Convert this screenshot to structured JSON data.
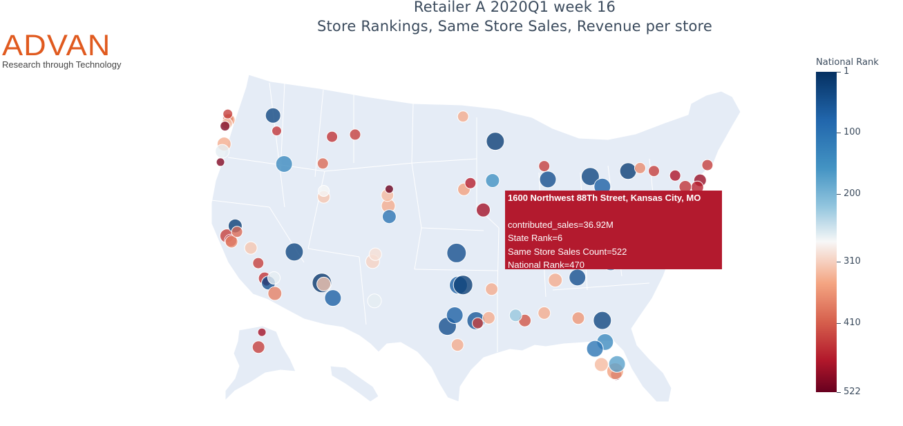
{
  "title": {
    "line1": "Retailer A 2020Q1 week 16",
    "line2": "Store Rankings, Same Store Sales, Revenue per store"
  },
  "logo": {
    "word": "ADVAN",
    "tagline": "Research through Technology"
  },
  "colorbar": {
    "title": "National Rank",
    "ticks": [
      "1",
      "100",
      "200",
      "310",
      "410",
      "522"
    ],
    "range": [
      1,
      522
    ],
    "reversed": true,
    "colorscale": [
      "#053061",
      "#2166ac",
      "#4393c3",
      "#92c5de",
      "#f7f7f7",
      "#f4a582",
      "#d6604d",
      "#b2182b",
      "#67001f"
    ]
  },
  "tooltip": {
    "address": "1600 Northwest 88Th Street, Kansas City, MO",
    "contributed_sales": "contributed_sales=36.92M",
    "state_rank": "State Rank=6",
    "same_store_sales_count": "Same Store Sales Count=522",
    "national_rank": "National Rank=470",
    "color": "#b31a2e"
  },
  "map": {
    "land_color": "#e5ecf6",
    "border_color": "#ffffff"
  },
  "chart_data": {
    "type": "scatter",
    "projection": "albers usa",
    "color_axis": "National Rank",
    "size_axis": "contributed_sales",
    "points": [
      {
        "lon": -122.3,
        "lat": 47.6,
        "rank": 480,
        "size": 8
      },
      {
        "lon": -122.2,
        "lat": 47.5,
        "rank": 330,
        "size": 9
      },
      {
        "lon": -122.4,
        "lat": 47.2,
        "rank": 300,
        "size": 8
      },
      {
        "lon": -122.6,
        "lat": 47.0,
        "rank": 500,
        "size": 7
      },
      {
        "lon": -122.3,
        "lat": 48.0,
        "rank": 420,
        "size": 7
      },
      {
        "lon": -117.4,
        "lat": 47.7,
        "rank": 30,
        "size": 11
      },
      {
        "lon": -117.0,
        "lat": 46.4,
        "rank": 430,
        "size": 7
      },
      {
        "lon": -116.2,
        "lat": 43.6,
        "rank": 120,
        "size": 12
      },
      {
        "lon": -112.0,
        "lat": 43.5,
        "rank": 380,
        "size": 8
      },
      {
        "lon": -111.9,
        "lat": 40.7,
        "rank": 300,
        "size": 9
      },
      {
        "lon": -111.9,
        "lat": 41.2,
        "rank": 260,
        "size": 8
      },
      {
        "lon": -122.7,
        "lat": 45.5,
        "rank": 320,
        "size": 10
      },
      {
        "lon": -122.9,
        "lat": 44.9,
        "rank": 250,
        "size": 10
      },
      {
        "lon": -123.1,
        "lat": 44.0,
        "rank": 500,
        "size": 6
      },
      {
        "lon": -122.4,
        "lat": 37.8,
        "rank": 420,
        "size": 10
      },
      {
        "lon": -122.0,
        "lat": 37.4,
        "rank": 460,
        "size": 9
      },
      {
        "lon": -121.9,
        "lat": 37.3,
        "rank": 350,
        "size": 9
      },
      {
        "lon": -121.5,
        "lat": 38.6,
        "rank": 20,
        "size": 10
      },
      {
        "lon": -121.3,
        "lat": 38.1,
        "rank": 380,
        "size": 8
      },
      {
        "lon": -119.8,
        "lat": 36.7,
        "rank": 300,
        "size": 9
      },
      {
        "lon": -119.0,
        "lat": 35.4,
        "rank": 420,
        "size": 8
      },
      {
        "lon": -118.3,
        "lat": 34.1,
        "rank": 430,
        "size": 9
      },
      {
        "lon": -118.1,
        "lat": 33.8,
        "rank": 500,
        "size": 6
      },
      {
        "lon": -117.9,
        "lat": 33.7,
        "rank": 40,
        "size": 10
      },
      {
        "lon": -117.2,
        "lat": 32.8,
        "rank": 360,
        "size": 10
      },
      {
        "lon": -117.3,
        "lat": 34.1,
        "rank": 250,
        "size": 9
      },
      {
        "lon": -115.1,
        "lat": 36.2,
        "rank": 30,
        "size": 13
      },
      {
        "lon": -112.1,
        "lat": 33.5,
        "rank": 10,
        "size": 14
      },
      {
        "lon": -111.9,
        "lat": 33.4,
        "rank": 300,
        "size": 10
      },
      {
        "lon": -110.9,
        "lat": 32.2,
        "rank": 60,
        "size": 12
      },
      {
        "lon": -106.6,
        "lat": 35.1,
        "rank": 290,
        "size": 10
      },
      {
        "lon": -104.9,
        "lat": 39.7,
        "rank": 320,
        "size": 10
      },
      {
        "lon": -104.8,
        "lat": 38.8,
        "rank": 90,
        "size": 10
      },
      {
        "lon": -105.0,
        "lat": 40.6,
        "rank": 310,
        "size": 9
      },
      {
        "lon": -106.3,
        "lat": 35.7,
        "rank": 280,
        "size": 9
      },
      {
        "lon": -104.8,
        "lat": 41.1,
        "rank": 520,
        "size": 6
      },
      {
        "lon": -108.5,
        "lat": 45.8,
        "rank": 420,
        "size": 8
      },
      {
        "lon": -111.0,
        "lat": 45.7,
        "rank": 430,
        "size": 8
      },
      {
        "lon": -106.4,
        "lat": 31.8,
        "rank": 250,
        "size": 10
      },
      {
        "lon": -97.5,
        "lat": 35.5,
        "rank": 40,
        "size": 14
      },
      {
        "lon": -97.3,
        "lat": 32.8,
        "rank": 60,
        "size": 13
      },
      {
        "lon": -96.8,
        "lat": 32.8,
        "rank": 20,
        "size": 14
      },
      {
        "lon": -98.5,
        "lat": 29.4,
        "rank": 40,
        "size": 13
      },
      {
        "lon": -97.7,
        "lat": 30.3,
        "rank": 60,
        "size": 12
      },
      {
        "lon": -95.4,
        "lat": 29.8,
        "rank": 50,
        "size": 13
      },
      {
        "lon": -95.2,
        "lat": 29.6,
        "rank": 420,
        "size": 8
      },
      {
        "lon": -94.0,
        "lat": 30.1,
        "rank": 320,
        "size": 9
      },
      {
        "lon": -93.7,
        "lat": 32.5,
        "rank": 320,
        "size": 9
      },
      {
        "lon": -97.4,
        "lat": 27.8,
        "rank": 320,
        "size": 9
      },
      {
        "lon": -96.7,
        "lat": 40.8,
        "rank": 330,
        "size": 9
      },
      {
        "lon": -96.0,
        "lat": 41.3,
        "rank": 450,
        "size": 8
      },
      {
        "lon": -94.6,
        "lat": 39.1,
        "rank": 470,
        "size": 10
      },
      {
        "lon": -93.6,
        "lat": 41.6,
        "rank": 130,
        "size": 10
      },
      {
        "lon": -93.3,
        "lat": 44.9,
        "rank": 20,
        "size": 13
      },
      {
        "lon": -96.8,
        "lat": 46.9,
        "rank": 320,
        "size": 8
      },
      {
        "lon": -90.2,
        "lat": 38.6,
        "rank": 120,
        "size": 11
      },
      {
        "lon": -90.0,
        "lat": 35.1,
        "rank": 60,
        "size": 12
      },
      {
        "lon": -87.6,
        "lat": 41.9,
        "rank": 40,
        "size": 12
      },
      {
        "lon": -88.0,
        "lat": 43.0,
        "rank": 420,
        "size": 8
      },
      {
        "lon": -86.2,
        "lat": 39.8,
        "rank": 200,
        "size": 11
      },
      {
        "lon": -84.5,
        "lat": 39.1,
        "rank": 300,
        "size": 10
      },
      {
        "lon": -83.0,
        "lat": 40.0,
        "rank": 360,
        "size": 9
      },
      {
        "lon": -83.0,
        "lat": 42.3,
        "rank": 30,
        "size": 13
      },
      {
        "lon": -85.7,
        "lat": 38.2,
        "rank": 290,
        "size": 10
      },
      {
        "lon": -86.8,
        "lat": 36.2,
        "rank": 40,
        "size": 12
      },
      {
        "lon": -84.4,
        "lat": 33.8,
        "rank": 40,
        "size": 12
      },
      {
        "lon": -86.8,
        "lat": 33.5,
        "rank": 320,
        "size": 10
      },
      {
        "lon": -81.7,
        "lat": 41.5,
        "rank": 60,
        "size": 12
      },
      {
        "lon": -80.0,
        "lat": 40.4,
        "rank": 250,
        "size": 11
      },
      {
        "lon": -80.8,
        "lat": 35.2,
        "rank": 100,
        "size": 12
      },
      {
        "lon": -78.6,
        "lat": 35.8,
        "rank": 80,
        "size": 12
      },
      {
        "lon": -77.4,
        "lat": 37.5,
        "rank": 120,
        "size": 11
      },
      {
        "lon": -81.7,
        "lat": 30.3,
        "rank": 30,
        "size": 13
      },
      {
        "lon": -81.4,
        "lat": 28.5,
        "rank": 120,
        "size": 12
      },
      {
        "lon": -82.5,
        "lat": 27.9,
        "rank": 90,
        "size": 12
      },
      {
        "lon": -80.2,
        "lat": 25.8,
        "rank": 500,
        "size": 8
      },
      {
        "lon": -80.3,
        "lat": 26.1,
        "rank": 330,
        "size": 12
      },
      {
        "lon": -80.1,
        "lat": 26.7,
        "rank": 150,
        "size": 12
      },
      {
        "lon": -81.8,
        "lat": 26.6,
        "rank": 310,
        "size": 10
      },
      {
        "lon": -84.3,
        "lat": 30.4,
        "rank": 340,
        "size": 9
      },
      {
        "lon": -88.0,
        "lat": 30.7,
        "rank": 320,
        "size": 9
      },
      {
        "lon": -90.1,
        "lat": 30.0,
        "rank": 400,
        "size": 9
      },
      {
        "lon": -91.1,
        "lat": 30.4,
        "rank": 200,
        "size": 9
      },
      {
        "lon": -77.0,
        "lat": 38.9,
        "rank": 430,
        "size": 10
      },
      {
        "lon": -76.6,
        "lat": 39.3,
        "rank": 400,
        "size": 9
      },
      {
        "lon": -75.2,
        "lat": 40.0,
        "rank": 420,
        "size": 10
      },
      {
        "lon": -74.0,
        "lat": 40.7,
        "rank": 450,
        "size": 10
      },
      {
        "lon": -73.8,
        "lat": 40.9,
        "rank": 420,
        "size": 10
      },
      {
        "lon": -74.2,
        "lat": 40.5,
        "rank": 350,
        "size": 9
      },
      {
        "lon": -71.1,
        "lat": 42.4,
        "rank": 480,
        "size": 9
      },
      {
        "lon": -71.4,
        "lat": 41.8,
        "rank": 450,
        "size": 9
      },
      {
        "lon": -72.7,
        "lat": 41.8,
        "rank": 430,
        "size": 9
      },
      {
        "lon": -73.8,
        "lat": 42.7,
        "rank": 460,
        "size": 8
      },
      {
        "lon": -76.1,
        "lat": 43.0,
        "rank": 420,
        "size": 8
      },
      {
        "lon": -78.9,
        "lat": 42.9,
        "rank": 20,
        "size": 12
      },
      {
        "lon": -70.3,
        "lat": 43.7,
        "rank": 420,
        "size": 8
      },
      {
        "lon": -77.6,
        "lat": 43.2,
        "rank": 350,
        "size": 8
      },
      {
        "lon": -149.9,
        "lat": 61.2,
        "rank": 420,
        "size": 9
      },
      {
        "lon": -147.7,
        "lat": 64.8,
        "rank": 470,
        "size": 6
      }
    ]
  }
}
